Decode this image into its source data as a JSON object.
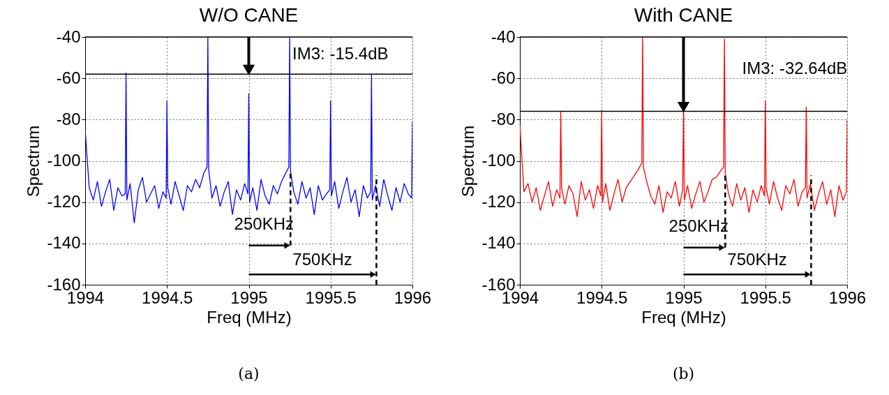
{
  "chart_data": [
    {
      "type": "line",
      "title": "W/O CANE",
      "xlabel": "Freq (MHz)",
      "ylabel": "Spectrum",
      "x": [
        1994,
        1994.025,
        1994.05,
        1994.075,
        1994.1,
        1994.125,
        1994.15,
        1994.175,
        1994.2,
        1994.225,
        1994.245,
        1994.25,
        1994.255,
        1994.275,
        1994.3,
        1994.325,
        1994.35,
        1994.375,
        1994.4,
        1994.425,
        1994.45,
        1994.475,
        1994.495,
        1994.5,
        1994.505,
        1994.525,
        1994.55,
        1994.575,
        1994.6,
        1994.625,
        1994.65,
        1994.675,
        1994.7,
        1994.725,
        1994.745,
        1994.75,
        1994.755,
        1994.775,
        1994.8,
        1994.825,
        1994.85,
        1994.875,
        1994.9,
        1994.925,
        1994.95,
        1994.975,
        1994.995,
        1995,
        1995.005,
        1995.025,
        1995.05,
        1995.075,
        1995.1,
        1995.125,
        1995.15,
        1995.175,
        1995.2,
        1995.225,
        1995.245,
        1995.25,
        1995.255,
        1995.275,
        1995.3,
        1995.325,
        1995.35,
        1995.375,
        1995.4,
        1995.425,
        1995.45,
        1995.475,
        1995.495,
        1995.5,
        1995.505,
        1995.525,
        1995.55,
        1995.575,
        1995.6,
        1995.625,
        1995.65,
        1995.675,
        1995.7,
        1995.725,
        1995.745,
        1995.75,
        1995.755,
        1995.775,
        1995.8,
        1995.825,
        1995.85,
        1995.875,
        1995.9,
        1995.925,
        1995.95,
        1995.975,
        1995.995,
        1996
      ],
      "series": [
        {
          "color": "#0000ff",
          "values": [
            -85,
            -113,
            -119,
            -110,
            -122,
            -115,
            -109,
            -124,
            -113,
            -117,
            -116,
            -57.5,
            -119,
            -111,
            -130,
            -114,
            -108,
            -120,
            -116,
            -112,
            -123,
            -115,
            -118,
            -71,
            -113,
            -121,
            -110,
            -117,
            -124,
            -112,
            -115,
            -109,
            -113,
            -106,
            -103,
            -40,
            -104,
            -118,
            -112,
            -122,
            -115,
            -110,
            -126,
            -114,
            -119,
            -111,
            -116,
            -67.5,
            -120,
            -113,
            -124,
            -109,
            -117,
            -121,
            -112,
            -116,
            -110,
            -106,
            -103,
            -40.5,
            -105,
            -115,
            -121,
            -110,
            -118,
            -113,
            -126,
            -112,
            -119,
            -116,
            -114,
            -71,
            -117,
            -110,
            -123,
            -115,
            -108,
            -120,
            -114,
            -127,
            -112,
            -118,
            -115,
            -58,
            -119,
            -112,
            -122,
            -109,
            -117,
            -124,
            -113,
            -120,
            -111,
            -116,
            -118,
            -81
          ]
        }
      ],
      "xlim": [
        1994,
        1996
      ],
      "ylim": [
        -160,
        -40
      ],
      "xticks": [
        1994,
        1994.5,
        1995,
        1995.5,
        1996
      ],
      "yticks": [
        -160,
        -140,
        -120,
        -100,
        -80,
        -60,
        -40
      ],
      "grid": true,
      "ref_lines": [
        {
          "axis": "y",
          "value": -40
        },
        {
          "axis": "y",
          "value": -58
        }
      ],
      "annotations": [
        "IM3: -15.4dB",
        {
          "text": "250KHz",
          "x": 1995.255,
          "y": -105
        },
        "750KHz",
        "(a)"
      ]
    },
    {
      "type": "line",
      "title": "With CANE",
      "xlabel": "Freq (MHz)",
      "ylabel": "Spectrum",
      "x": [
        1994,
        1994.025,
        1994.05,
        1994.075,
        1994.1,
        1994.125,
        1994.15,
        1994.175,
        1994.2,
        1994.225,
        1994.245,
        1994.25,
        1994.255,
        1994.275,
        1994.3,
        1994.325,
        1994.35,
        1994.375,
        1994.4,
        1994.425,
        1994.45,
        1994.475,
        1994.495,
        1994.5,
        1994.505,
        1994.525,
        1994.55,
        1994.575,
        1994.6,
        1994.625,
        1994.65,
        1994.675,
        1994.7,
        1994.725,
        1994.745,
        1994.75,
        1994.755,
        1994.775,
        1994.8,
        1994.825,
        1994.85,
        1994.875,
        1994.9,
        1994.925,
        1994.95,
        1994.975,
        1994.995,
        1995,
        1995.005,
        1995.025,
        1995.05,
        1995.075,
        1995.1,
        1995.125,
        1995.15,
        1995.175,
        1995.2,
        1995.225,
        1995.245,
        1995.25,
        1995.255,
        1995.275,
        1995.3,
        1995.325,
        1995.35,
        1995.375,
        1995.4,
        1995.425,
        1995.45,
        1995.475,
        1995.495,
        1995.5,
        1995.505,
        1995.525,
        1995.55,
        1995.575,
        1995.6,
        1995.625,
        1995.65,
        1995.675,
        1995.7,
        1995.725,
        1995.745,
        1995.75,
        1995.755,
        1995.775,
        1995.8,
        1995.825,
        1995.85,
        1995.875,
        1995.9,
        1995.925,
        1995.95,
        1995.975,
        1995.995,
        1996
      ],
      "series": [
        {
          "color": "#ff0000",
          "values": [
            -83,
            -115,
            -111,
            -120,
            -113,
            -124,
            -117,
            -110,
            -122,
            -114,
            -118,
            -76,
            -113,
            -121,
            -112,
            -116,
            -127,
            -110,
            -119,
            -114,
            -123,
            -112,
            -117,
            -75.5,
            -120,
            -111,
            -124,
            -116,
            -109,
            -120,
            -113,
            -110,
            -107,
            -104,
            -101,
            -40,
            -103,
            -110,
            -117,
            -121,
            -112,
            -125,
            -115,
            -118,
            -110,
            -122,
            -114,
            -76,
            -119,
            -112,
            -123,
            -116,
            -110,
            -120,
            -115,
            -109,
            -108,
            -105,
            -103,
            -41,
            -106,
            -116,
            -122,
            -111,
            -119,
            -113,
            -125,
            -114,
            -120,
            -112,
            -117,
            -71,
            -113,
            -121,
            -110,
            -118,
            -124,
            -112,
            -116,
            -109,
            -122,
            -115,
            -113,
            -74,
            -118,
            -111,
            -124,
            -116,
            -110,
            -121,
            -114,
            -127,
            -112,
            -119,
            -115,
            -80
          ]
        }
      ],
      "xlim": [
        1994,
        1996
      ],
      "ylim": [
        -160,
        -40
      ],
      "xticks": [
        1994,
        1994.5,
        1995,
        1995.5,
        1996
      ],
      "yticks": [
        -160,
        -140,
        -120,
        -100,
        -80,
        -60,
        -40
      ],
      "grid": true,
      "ref_lines": [
        {
          "axis": "y",
          "value": -40
        },
        {
          "axis": "y",
          "value": -76
        }
      ],
      "annotations": [
        "IM3: -32.64dB",
        {
          "text": "250KHz",
          "x": 1995.255,
          "y": -106
        },
        "750KHz",
        "(b)"
      ]
    }
  ]
}
